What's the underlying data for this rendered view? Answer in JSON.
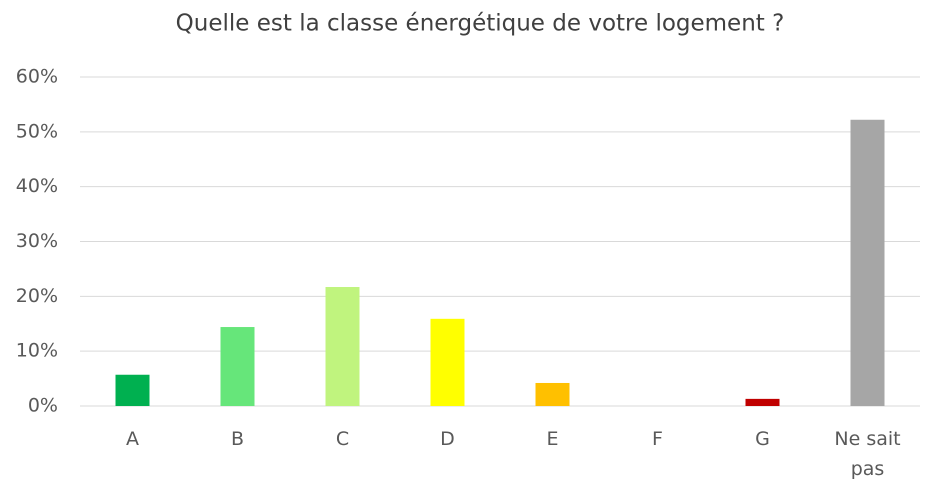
{
  "chart_data": {
    "type": "bar",
    "title": "Quelle est la classe énergétique de votre logement ?",
    "categories": [
      "A",
      "B",
      "C",
      "D",
      "E",
      "F",
      "G",
      "Ne sait pas"
    ],
    "values": [
      5.7,
      14.4,
      21.7,
      15.9,
      4.2,
      0,
      1.3,
      52.2
    ],
    "colors": [
      "#00b050",
      "#66e67a",
      "#c0f47e",
      "#ffff00",
      "#ffc000",
      "#ff6600",
      "#c00000",
      "#a6a6a6"
    ],
    "ylim": [
      0,
      60
    ],
    "yticks": [
      {
        "value": 0,
        "label": "0%"
      },
      {
        "value": 10,
        "label": "10%"
      },
      {
        "value": 20,
        "label": "20%"
      },
      {
        "value": 30,
        "label": "30%"
      },
      {
        "value": 40,
        "label": "40%"
      },
      {
        "value": 50,
        "label": "50%"
      },
      {
        "value": 60,
        "label": "60%"
      }
    ],
    "grid": true
  }
}
